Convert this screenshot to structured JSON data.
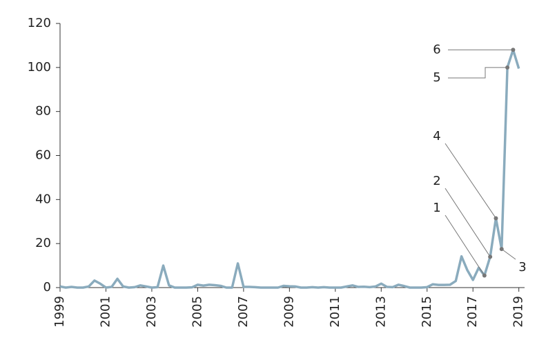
{
  "chart_data": {
    "type": "line",
    "x": [
      1999,
      1999.25,
      1999.5,
      1999.75,
      2000,
      2000.25,
      2000.5,
      2000.75,
      2001,
      2001.25,
      2001.5,
      2001.75,
      2002,
      2002.25,
      2002.5,
      2002.75,
      2003,
      2003.25,
      2003.5,
      2003.75,
      2004,
      2004.25,
      2004.5,
      2004.75,
      2005,
      2005.25,
      2005.5,
      2005.75,
      2006,
      2006.25,
      2006.5,
      2006.75,
      2007,
      2007.25,
      2007.5,
      2007.75,
      2008,
      2008.25,
      2008.5,
      2008.75,
      2009,
      2009.25,
      2009.5,
      2009.75,
      2010,
      2010.25,
      2010.5,
      2010.75,
      2011,
      2011.25,
      2011.5,
      2011.75,
      2012,
      2012.25,
      2012.5,
      2012.75,
      2013,
      2013.25,
      2013.5,
      2013.75,
      2014,
      2014.25,
      2014.5,
      2014.75,
      2015,
      2015.25,
      2015.5,
      2015.75,
      2016,
      2016.25,
      2016.5,
      2016.75,
      2017,
      2017.25,
      2017.5,
      2017.75,
      2018,
      2018.25,
      2018.5,
      2018.75,
      2019
    ],
    "series": [
      {
        "color": "#8aabbd",
        "values": [
          0.5,
          0,
          0.3,
          0,
          0,
          0.5,
          3.2,
          1.8,
          0,
          0.3,
          4,
          0.5,
          0,
          0.2,
          1,
          0.5,
          0,
          0.2,
          10,
          1,
          0,
          0,
          0,
          0.1,
          1.3,
          0.9,
          1.3,
          1.1,
          0.8,
          0,
          0,
          11,
          0.3,
          0.3,
          0.2,
          0,
          0,
          0,
          0,
          0.8,
          0.6,
          0.5,
          0,
          0,
          0.2,
          0,
          0.2,
          0,
          0,
          0,
          0.5,
          1,
          0.3,
          0.4,
          0.2,
          0.5,
          1.8,
          0.3,
          0.2,
          1.3,
          0.7,
          0,
          0,
          0,
          0.2,
          1.5,
          1.2,
          1.2,
          1.3,
          3,
          14.2,
          8,
          3.5,
          9,
          5.5,
          14,
          31.5,
          17.5,
          100,
          108,
          99.5
        ],
        "point_labels": [
          null,
          null,
          null,
          null,
          null,
          null,
          null,
          null,
          null,
          null,
          null,
          null,
          null,
          null,
          null,
          null,
          null,
          null,
          null,
          null,
          null,
          null,
          null,
          null,
          null,
          null,
          null,
          null,
          null,
          null,
          null,
          null,
          null,
          null,
          null,
          null,
          null,
          null,
          null,
          null,
          null,
          null,
          null,
          null,
          null,
          null,
          null,
          null,
          null,
          null,
          null,
          null,
          null,
          null,
          null,
          null,
          null,
          null,
          null,
          null,
          null,
          null,
          null,
          null,
          null,
          null,
          null,
          null,
          null,
          null,
          null,
          null,
          null,
          null,
          "1",
          "2",
          "4",
          "3",
          "5",
          "6",
          null
        ]
      }
    ],
    "xlim": [
      1999,
      2019.25
    ],
    "xticks": [
      1999,
      2001,
      2003,
      2005,
      2007,
      2009,
      2011,
      2013,
      2015,
      2017,
      2019
    ],
    "ylim": [
      0,
      120
    ],
    "yticks": [
      0,
      20,
      40,
      60,
      80,
      100,
      120
    ]
  }
}
